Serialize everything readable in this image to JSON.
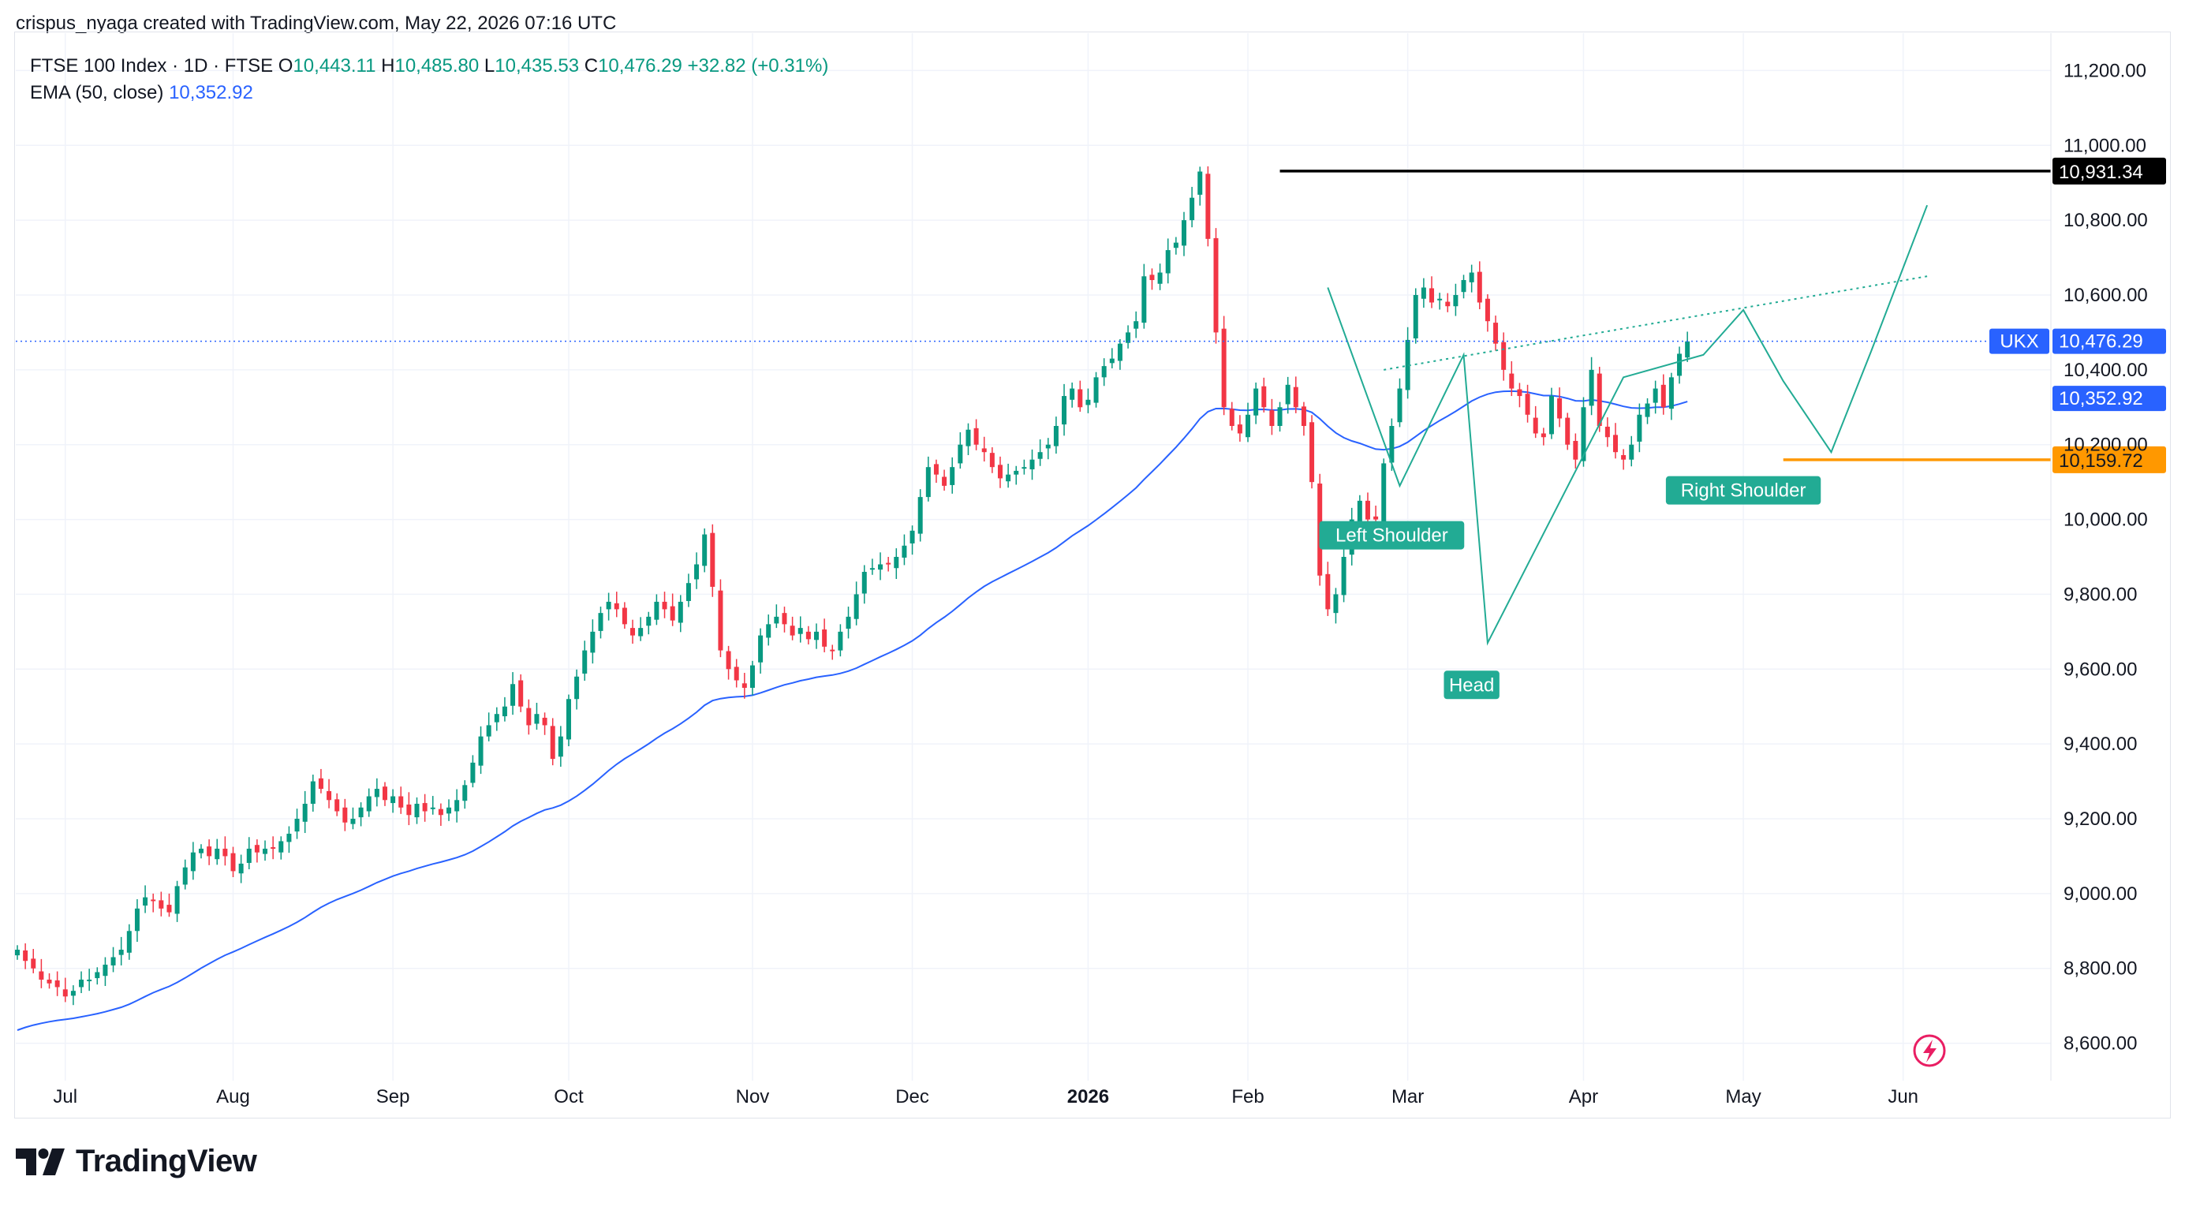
{
  "attribution": "crispus_nyaga created with TradingView.com, May 22, 2026 07:16 UTC",
  "legend": {
    "symbol": "FTSE 100 Index · 1D · FTSE",
    "open_label": "O",
    "open": "10,443.11",
    "high_label": "H",
    "high": "10,485.80",
    "low_label": "L",
    "low": "10,435.53",
    "close_label": "C",
    "close": "10,476.29",
    "change": "+32.82 (+0.31%)",
    "ema_label": "EMA (50, close)",
    "ema_value": "10,352.92"
  },
  "footer": {
    "brand": "TradingView"
  },
  "colors": {
    "up": "#089981",
    "down": "#f23645",
    "ema": "#2962ff",
    "pattern": "#22ab94",
    "support": "#ff9800",
    "resistance": "#000000"
  },
  "chart_data": {
    "type": "candlestick",
    "y_axis": {
      "min": 8500,
      "max": 11300,
      "ticks": [
        "8,600.00",
        "8,800.00",
        "9,000.00",
        "9,200.00",
        "9,400.00",
        "9,600.00",
        "9,800.00",
        "10,000.00",
        "10,200.00",
        "10,400.00",
        "10,600.00",
        "10,800.00",
        "11,000.00",
        "11,200.00"
      ],
      "position": "right"
    },
    "x_axis": {
      "labels": [
        {
          "text": "Jul",
          "bold": false,
          "i": 6
        },
        {
          "text": "Aug",
          "bold": false,
          "i": 27
        },
        {
          "text": "Sep",
          "bold": false,
          "i": 47
        },
        {
          "text": "Oct",
          "bold": false,
          "i": 69
        },
        {
          "text": "Nov",
          "bold": false,
          "i": 92
        },
        {
          "text": "Dec",
          "bold": false,
          "i": 112
        },
        {
          "text": "2026",
          "bold": true,
          "i": 134
        },
        {
          "text": "Feb",
          "bold": false,
          "i": 154
        },
        {
          "text": "Mar",
          "bold": false,
          "i": 174
        },
        {
          "text": "Apr",
          "bold": false,
          "i": 196
        },
        {
          "text": "May",
          "bold": false,
          "i": 216
        },
        {
          "text": "Jun",
          "bold": false,
          "i": 236
        }
      ]
    },
    "grid": true,
    "closes": [
      8850,
      8820,
      8800,
      8770,
      8760,
      8750,
      8725,
      8740,
      8770,
      8770,
      8790,
      8810,
      8830,
      8850,
      8900,
      8960,
      8990,
      8980,
      8960,
      8950,
      9020,
      9070,
      9110,
      9120,
      9100,
      9120,
      9100,
      9060,
      9080,
      9120,
      9110,
      9120,
      9120,
      9140,
      9160,
      9200,
      9240,
      9300,
      9280,
      9250,
      9220,
      9190,
      9200,
      9230,
      9260,
      9280,
      9250,
      9260,
      9230,
      9210,
      9240,
      9220,
      9230,
      9210,
      9230,
      9250,
      9290,
      9350,
      9420,
      9450,
      9480,
      9500,
      9560,
      9500,
      9450,
      9480,
      9450,
      9360,
      9420,
      9520,
      9580,
      9650,
      9700,
      9750,
      9780,
      9760,
      9720,
      9690,
      9710,
      9740,
      9780,
      9760,
      9730,
      9780,
      9830,
      9880,
      9960,
      9820,
      9650,
      9600,
      9570,
      9550,
      9610,
      9690,
      9720,
      9740,
      9720,
      9690,
      9710,
      9680,
      9700,
      9660,
      9650,
      9700,
      9740,
      9800,
      9860,
      9870,
      9880,
      9880,
      9900,
      9930,
      9970,
      10060,
      10140,
      10120,
      10090,
      10140,
      10200,
      10240,
      10200,
      10180,
      10140,
      10110,
      10120,
      10130,
      10140,
      10160,
      10180,
      10200,
      10250,
      10330,
      10350,
      10300,
      10320,
      10380,
      10410,
      10430,
      10470,
      10500,
      10530,
      10650,
      10640,
      10660,
      10720,
      10740,
      10800,
      10860,
      10930,
      10750,
      10500,
      10300,
      10250,
      10230,
      10280,
      10350,
      10300,
      10250,
      10300,
      10360,
      10300,
      10250,
      10100,
      9850,
      9760,
      9800,
      9900,
      10000,
      10050,
      10000,
      10000,
      10150,
      10250,
      10350,
      10480,
      10600,
      10620,
      10580,
      10590,
      10570,
      10600,
      10640,
      10660,
      10580,
      10530,
      10470,
      10400,
      10350,
      10330,
      10280,
      10230,
      10220,
      10330,
      10270,
      10200,
      10160,
      10300,
      10400,
      10250,
      10220,
      10180,
      10160,
      10200,
      10280,
      10310,
      10350,
      10300,
      10380,
      10443,
      10476
    ],
    "ema_note": "EMA (50, close) ends at 10,352.92",
    "annotations": [
      {
        "type": "label",
        "text": "Left Shoulder",
        "i": 172,
        "value": 10000
      },
      {
        "type": "label",
        "text": "Head",
        "i": 182,
        "value": 9600
      },
      {
        "type": "label",
        "text": "Right Shoulder",
        "i": 216,
        "value": 10120
      }
    ],
    "levels": [
      {
        "name": "resistance",
        "value": 10931.34,
        "label": "10,931.34",
        "color": "#000000"
      },
      {
        "name": "support",
        "value": 10159.72,
        "label": "10,159.72",
        "color": "#ff9800"
      },
      {
        "name": "last-price",
        "value": 10476.29,
        "label": "10,476.29",
        "tag": "UKX",
        "color": "#2962ff"
      },
      {
        "name": "ema",
        "value": 10352.92,
        "label": "10,352.92",
        "color": "#2962ff"
      }
    ]
  }
}
